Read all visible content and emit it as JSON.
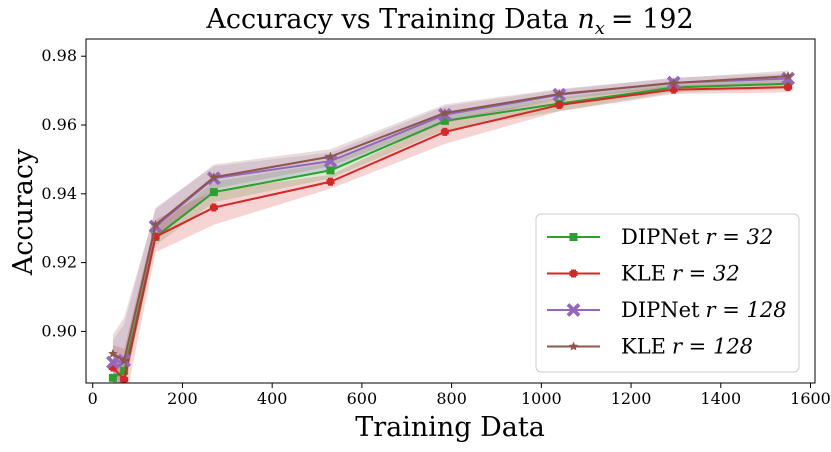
{
  "chart_data": {
    "type": "line",
    "title": "Accuracy vs Training Data",
    "title_math": {
      "var": "n",
      "sub": "x",
      "value": "= 192"
    },
    "xlabel": "Training Data",
    "ylabel": "Accuracy",
    "xlim": [
      -15,
      1610
    ],
    "ylim": [
      0.885,
      0.985
    ],
    "xticks": [
      0,
      200,
      400,
      600,
      800,
      1000,
      1200,
      1400,
      1600
    ],
    "yticks": [
      0.9,
      0.92,
      0.94,
      0.96,
      0.98
    ],
    "ytick_labels": [
      "0.90",
      "0.92",
      "0.94",
      "0.96",
      "0.98"
    ],
    "grid": false,
    "legend_position": "lower-right",
    "x": [
      45,
      70,
      140,
      270,
      530,
      785,
      1040,
      1295,
      1550
    ],
    "series": [
      {
        "name": "DIPNet",
        "rank_label": "r = 32",
        "color": "#2ca02c",
        "marker": "square",
        "values": [
          0.8865,
          0.8885,
          0.9275,
          0.9405,
          0.9468,
          0.9612,
          0.9662,
          0.9709,
          0.972
        ],
        "lower": [
          0.882,
          0.884,
          0.925,
          0.9375,
          0.9445,
          0.9585,
          0.964,
          0.9695,
          0.9705
        ],
        "upper": [
          0.891,
          0.893,
          0.93,
          0.9435,
          0.949,
          0.9635,
          0.968,
          0.9722,
          0.9735
        ]
      },
      {
        "name": "KLE",
        "rank_label": "r = 32",
        "color": "#d62728",
        "marker": "plus",
        "values": [
          0.8895,
          0.886,
          0.9275,
          0.936,
          0.9435,
          0.958,
          0.9658,
          0.9703,
          0.971
        ],
        "lower": [
          0.879,
          0.878,
          0.923,
          0.931,
          0.9415,
          0.9545,
          0.964,
          0.969,
          0.9695
        ],
        "upper": [
          0.896,
          0.895,
          0.9325,
          0.941,
          0.9455,
          0.9615,
          0.9675,
          0.9715,
          0.9725
        ]
      },
      {
        "name": "DIPNet",
        "rank_label": "r = 128",
        "color": "#9467bd",
        "marker": "x",
        "values": [
          0.891,
          0.8915,
          0.9305,
          0.9445,
          0.9495,
          0.963,
          0.9688,
          0.9723,
          0.9735
        ],
        "lower": [
          0.884,
          0.884,
          0.927,
          0.941,
          0.947,
          0.9605,
          0.9675,
          0.971,
          0.972
        ],
        "upper": [
          0.8975,
          0.902,
          0.936,
          0.948,
          0.952,
          0.9655,
          0.9702,
          0.9738,
          0.975
        ]
      },
      {
        "name": "KLE",
        "rank_label": "r = 128",
        "color": "#8c564b",
        "marker": "star",
        "values": [
          0.8935,
          0.8915,
          0.931,
          0.9448,
          0.9508,
          0.9635,
          0.969,
          0.9722,
          0.9742
        ],
        "lower": [
          0.8885,
          0.883,
          0.9265,
          0.9415,
          0.948,
          0.961,
          0.9675,
          0.971,
          0.9725
        ],
        "upper": [
          0.899,
          0.904,
          0.9355,
          0.9485,
          0.953,
          0.966,
          0.9705,
          0.9736,
          0.9758
        ]
      }
    ]
  }
}
